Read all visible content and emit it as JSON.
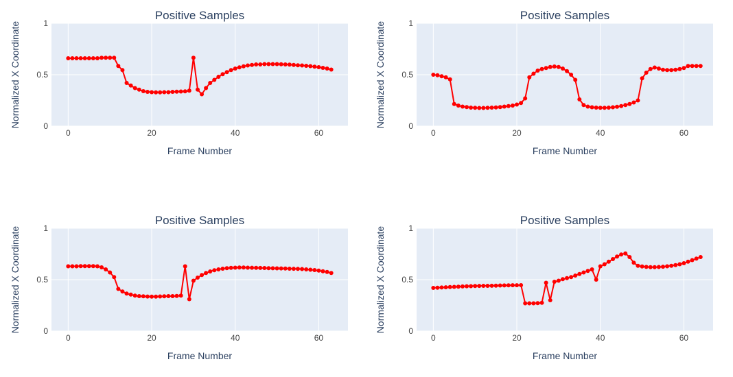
{
  "colors": {
    "plot_bg": "#E5ECF6",
    "grid": "#ffffff",
    "series": "#ff0000",
    "text": "#444444",
    "title": "#2a3f5f"
  },
  "chart_data": [
    {
      "type": "line",
      "title": "Positive Samples",
      "xlabel": "Frame Number",
      "ylabel": "Normalized X Coordinate",
      "xlim": [
        -4,
        67
      ],
      "ylim": [
        0,
        1
      ],
      "xticks": [
        0,
        20,
        40,
        60
      ],
      "yticks": [
        0,
        0.5,
        1
      ],
      "ytick_labels": [
        "0",
        "0.5",
        "1"
      ],
      "grid": true,
      "series": [
        {
          "values": [
            0.66,
            0.66,
            0.66,
            0.66,
            0.66,
            0.66,
            0.66,
            0.66,
            0.665,
            0.665,
            0.665,
            0.665,
            0.585,
            0.545,
            0.42,
            0.395,
            0.37,
            0.355,
            0.34,
            0.333,
            0.33,
            0.328,
            0.328,
            0.33,
            0.33,
            0.333,
            0.335,
            0.337,
            0.338,
            0.345,
            0.665,
            0.355,
            0.31,
            0.37,
            0.42,
            0.45,
            0.48,
            0.505,
            0.525,
            0.545,
            0.56,
            0.572,
            0.582,
            0.59,
            0.595,
            0.6,
            0.6,
            0.603,
            0.603,
            0.603,
            0.603,
            0.602,
            0.6,
            0.598,
            0.595,
            0.592,
            0.59,
            0.587,
            0.583,
            0.578,
            0.573,
            0.567,
            0.56,
            0.55
          ]
        }
      ]
    },
    {
      "type": "line",
      "title": "Positive Samples",
      "xlabel": "Frame Number",
      "ylabel": "Normalized X Coordinate",
      "xlim": [
        -4,
        67
      ],
      "ylim": [
        0,
        1
      ],
      "xticks": [
        0,
        20,
        40,
        60
      ],
      "yticks": [
        0,
        0.5,
        1
      ],
      "ytick_labels": [
        "0",
        "0.5",
        "1"
      ],
      "grid": true,
      "series": [
        {
          "values": [
            0.5,
            0.495,
            0.485,
            0.475,
            0.455,
            0.215,
            0.2,
            0.19,
            0.185,
            0.18,
            0.178,
            0.177,
            0.177,
            0.178,
            0.18,
            0.182,
            0.185,
            0.19,
            0.195,
            0.2,
            0.21,
            0.225,
            0.27,
            0.475,
            0.51,
            0.54,
            0.555,
            0.565,
            0.575,
            0.58,
            0.575,
            0.56,
            0.535,
            0.5,
            0.45,
            0.26,
            0.205,
            0.19,
            0.183,
            0.18,
            0.178,
            0.178,
            0.18,
            0.183,
            0.188,
            0.195,
            0.205,
            0.215,
            0.23,
            0.25,
            0.465,
            0.52,
            0.555,
            0.57,
            0.56,
            0.548,
            0.545,
            0.545,
            0.548,
            0.555,
            0.565,
            0.585,
            0.585,
            0.585,
            0.585
          ]
        }
      ]
    },
    {
      "type": "line",
      "title": "Positive Samples",
      "xlabel": "Frame Number",
      "ylabel": "Normalized X Coordinate",
      "xlim": [
        -4,
        67
      ],
      "ylim": [
        0,
        1
      ],
      "xticks": [
        0,
        20,
        40,
        60
      ],
      "yticks": [
        0,
        0.5,
        1
      ],
      "ytick_labels": [
        "0",
        "0.5",
        "1"
      ],
      "grid": true,
      "series": [
        {
          "values": [
            0.63,
            0.63,
            0.63,
            0.632,
            0.632,
            0.632,
            0.632,
            0.63,
            0.62,
            0.6,
            0.57,
            0.525,
            0.41,
            0.385,
            0.365,
            0.355,
            0.345,
            0.34,
            0.338,
            0.336,
            0.335,
            0.335,
            0.337,
            0.338,
            0.34,
            0.34,
            0.342,
            0.345,
            0.63,
            0.31,
            0.49,
            0.52,
            0.545,
            0.565,
            0.58,
            0.592,
            0.6,
            0.607,
            0.612,
            0.615,
            0.617,
            0.618,
            0.618,
            0.617,
            0.616,
            0.615,
            0.614,
            0.613,
            0.612,
            0.611,
            0.61,
            0.609,
            0.608,
            0.607,
            0.606,
            0.605,
            0.603,
            0.6,
            0.597,
            0.593,
            0.588,
            0.582,
            0.575,
            0.565
          ]
        }
      ]
    },
    {
      "type": "line",
      "title": "Positive Samples",
      "xlabel": "Frame Number",
      "ylabel": "Normalized X Coordinate",
      "xlim": [
        -4,
        67
      ],
      "ylim": [
        0,
        1
      ],
      "xticks": [
        0,
        20,
        40,
        60
      ],
      "yticks": [
        0,
        0.5,
        1
      ],
      "ytick_labels": [
        "0",
        "0.5",
        "1"
      ],
      "grid": true,
      "series": [
        {
          "values": [
            0.42,
            0.422,
            0.424,
            0.426,
            0.428,
            0.43,
            0.432,
            0.434,
            0.436,
            0.437,
            0.438,
            0.439,
            0.44,
            0.44,
            0.441,
            0.442,
            0.443,
            0.444,
            0.445,
            0.446,
            0.446,
            0.447,
            0.27,
            0.27,
            0.27,
            0.272,
            0.275,
            0.47,
            0.3,
            0.48,
            0.49,
            0.505,
            0.515,
            0.525,
            0.54,
            0.555,
            0.57,
            0.585,
            0.6,
            0.5,
            0.63,
            0.65,
            0.675,
            0.7,
            0.725,
            0.745,
            0.755,
            0.72,
            0.665,
            0.635,
            0.628,
            0.624,
            0.622,
            0.622,
            0.623,
            0.626,
            0.63,
            0.635,
            0.642,
            0.65,
            0.66,
            0.675,
            0.69,
            0.705,
            0.72
          ]
        }
      ]
    }
  ]
}
